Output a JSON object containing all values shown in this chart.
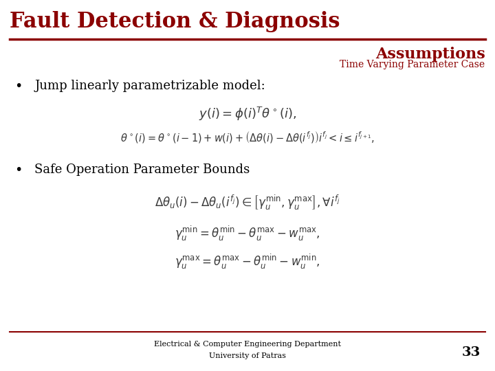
{
  "title": "Fault Detection & Diagnosis",
  "subtitle": "Assumptions",
  "subtitle2": "Time Varying Parameter Case",
  "bullet1": "Jump linearly parametrizable model:",
  "bullet2": "Safe Operation Parameter Bounds",
  "footer1": "Electrical & Computer Engineering Department",
  "footer2": "University of Patras",
  "page_num": "33",
  "title_color": "#8B0000",
  "line_color": "#8B0000",
  "subtitle_color": "#8B0000",
  "bg_color": "#FFFFFF",
  "text_color": "#000000",
  "eq_color": "#3a3a3a"
}
